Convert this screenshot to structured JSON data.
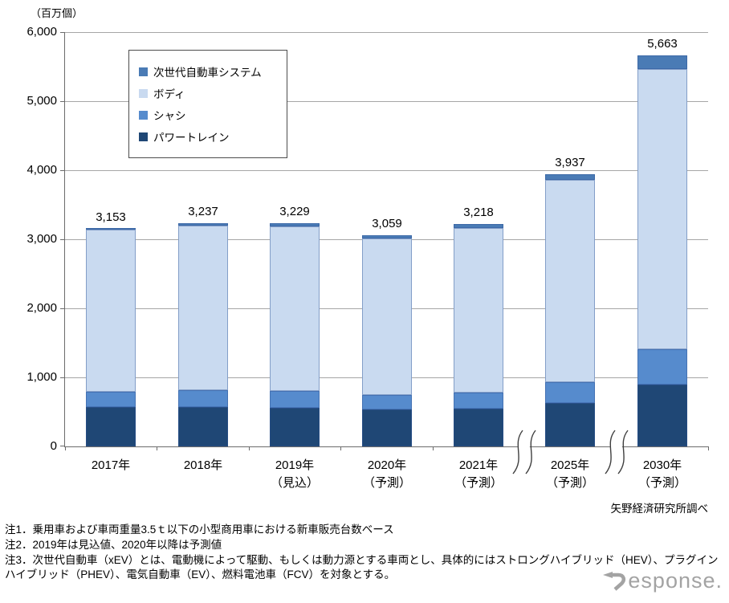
{
  "figure": {
    "unit_label": "（百万個）",
    "source": "矢野経済研究所調べ",
    "watermark_text": "esponse.",
    "notes": [
      "注1．乗用車および車両重量3.5ｔ以下の小型商用車における新車販売台数ベース",
      "注2．2019年は見込値、2020年以降は予測値",
      "注3．次世代自動車（xEV）とは、電動機によって駆動、もしくは動力源とする車両とし、具体的にはストロングハイブリッド（HEV）、プラグインハイブリッド（PHEV）、電気自動車（EV）、燃料電池車（FCV）を対象とする。"
    ]
  },
  "chart_data": {
    "type": "bar",
    "subtype": "stacked",
    "title": "",
    "unit_label": "（百万個）",
    "categories": [
      "2017年",
      "2018年",
      "2019年",
      "2020年",
      "2021年",
      "2025年",
      "2030年"
    ],
    "category_sublabels": [
      "",
      "",
      "（見込）",
      "（予測）",
      "（予測）",
      "（予測）",
      "（予測）"
    ],
    "totals": [
      3153,
      3237,
      3229,
      3059,
      3218,
      3937,
      5663
    ],
    "total_labels": [
      "3,153",
      "3,237",
      "3,229",
      "3,059",
      "3,218",
      "3,937",
      "5,663"
    ],
    "series": [
      {
        "name": "パワートレイン",
        "color": "#1F4775",
        "values": [
          570,
          575,
          560,
          530,
          550,
          630,
          900
        ]
      },
      {
        "name": "シャシ",
        "color": "#568BCD",
        "values": [
          220,
          235,
          240,
          220,
          235,
          300,
          510
        ]
      },
      {
        "name": "ボディ",
        "color": "#C9DAF0",
        "values": [
          2348,
          2387,
          2384,
          2259,
          2378,
          2927,
          4053
        ]
      },
      {
        "name": "次世代自動車システム",
        "color": "#4A7BB5",
        "values": [
          15,
          40,
          45,
          50,
          55,
          80,
          200
        ]
      }
    ],
    "legend": [
      {
        "label": "次世代自動車システム",
        "color": "#4A7BB5"
      },
      {
        "label": "ボディ",
        "color": "#C9DAF0"
      },
      {
        "label": "シャシ",
        "color": "#568BCD"
      },
      {
        "label": "パワートレイン",
        "color": "#1F4775"
      }
    ],
    "legend_position": "upper-left-inside",
    "grid": true,
    "ylim": [
      0,
      6000
    ],
    "y_ticks": [
      {
        "value": 0,
        "label": "0"
      },
      {
        "value": 1000,
        "label": "1,000"
      },
      {
        "value": 2000,
        "label": "2,000"
      },
      {
        "value": 3000,
        "label": "3,000"
      },
      {
        "value": 4000,
        "label": "4,000"
      },
      {
        "value": 5000,
        "label": "5,000"
      },
      {
        "value": 6000,
        "label": "6,000"
      }
    ],
    "axis_break_boundaries": [
      5,
      6
    ],
    "colors": {
      "gridline": "#a6a6a6",
      "axis": "#6b6b6b",
      "watermark": "#a3a3a3"
    }
  }
}
